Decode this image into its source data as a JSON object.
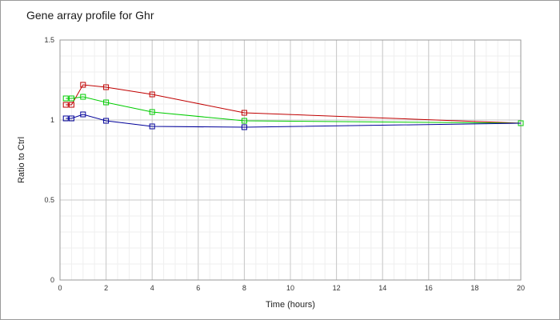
{
  "chart_data": {
    "type": "line",
    "title": "Gene array profile for Ghr",
    "xlabel": "Time (hours)",
    "ylabel": "Ratio to Ctrl",
    "xlim": [
      0,
      20
    ],
    "ylim": [
      0,
      1.5
    ],
    "x_ticks": [
      "0",
      "2",
      "4",
      "6",
      "8",
      "10",
      "12",
      "14",
      "16",
      "18",
      "20"
    ],
    "y_ticks": [
      "0",
      "0.5",
      "1",
      "1.5"
    ],
    "grid": true,
    "legend": "none",
    "series": [
      {
        "color": "#c00000",
        "points": [
          [
            0.25,
            1.095
          ],
          [
            0.5,
            1.095
          ],
          [
            1,
            1.22
          ],
          [
            2,
            1.205
          ],
          [
            4,
            1.16
          ],
          [
            8,
            1.045
          ],
          [
            20,
            0.98
          ]
        ],
        "marker_count": 6
      },
      {
        "color": "#00cc00",
        "points": [
          [
            0.25,
            1.135
          ],
          [
            0.5,
            1.135
          ],
          [
            1,
            1.145
          ],
          [
            2,
            1.11
          ],
          [
            4,
            1.05
          ],
          [
            8,
            0.995
          ],
          [
            20,
            0.98
          ]
        ],
        "marker_count": 7
      },
      {
        "color": "#000099",
        "points": [
          [
            0.25,
            1.01
          ],
          [
            0.5,
            1.01
          ],
          [
            1,
            1.035
          ],
          [
            2,
            0.995
          ],
          [
            4,
            0.96
          ],
          [
            8,
            0.955
          ],
          [
            20,
            0.98
          ]
        ],
        "marker_count": 6
      }
    ]
  }
}
